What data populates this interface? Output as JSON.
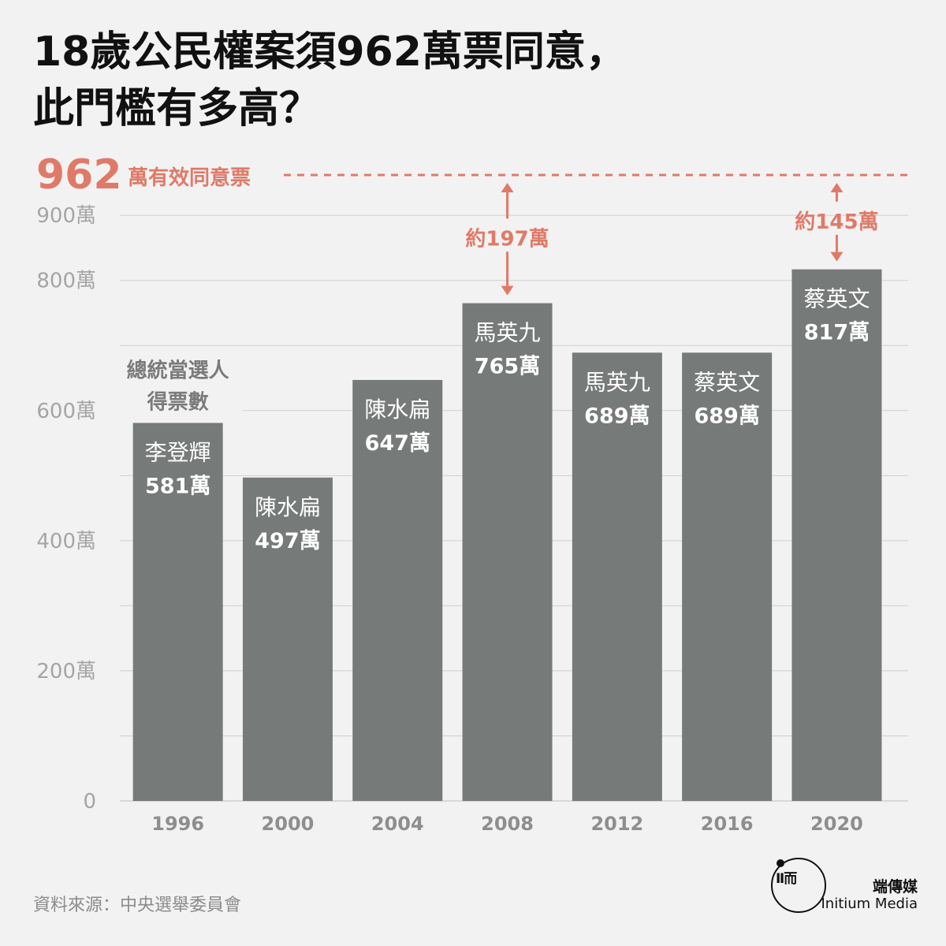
{
  "title": {
    "line1": "18歲公民權案須962萬票同意，",
    "line2": "此門檻有多高？"
  },
  "colors": {
    "bar": "#767a79",
    "accent": "#e07a68",
    "grid": "#cfcfcf",
    "axis_text": "#a5a5a5",
    "year_text": "#8e8e8e",
    "annotation_gray": "#7b7b7b"
  },
  "chart_data": {
    "type": "bar",
    "categories": [
      "1996",
      "2000",
      "2004",
      "2008",
      "2012",
      "2016",
      "2020"
    ],
    "values": [
      581,
      497,
      647,
      765,
      689,
      689,
      817
    ],
    "value_labels": [
      "581萬",
      "497萬",
      "647萬",
      "765萬",
      "689萬",
      "689萬",
      "817萬"
    ],
    "bar_names": [
      "李登輝",
      "陳水扁",
      "陳水扁",
      "馬英九",
      "馬英九",
      "蔡英文",
      "蔡英文"
    ],
    "ylim": [
      0,
      962
    ],
    "yticks": [
      0,
      200,
      400,
      600,
      800,
      900
    ],
    "ytick_labels": [
      "0",
      "200萬",
      "400萬",
      "600萬",
      "800萬",
      "900萬"
    ],
    "gridlines": [
      100,
      200,
      300,
      400,
      500,
      600,
      700,
      800,
      900
    ],
    "threshold": {
      "value": 962,
      "number_label": "962",
      "text_label": "萬有效同意票"
    },
    "gap_annotations": [
      {
        "category": "2008",
        "label": "約197萬"
      },
      {
        "category": "2020",
        "label": "約145萬"
      }
    ],
    "series_annotation": {
      "line1": "總統當選人",
      "line2": "得票數"
    }
  },
  "source": "資料來源：中央選舉委員會",
  "brand": {
    "logo_glyph": "Ⅱ而",
    "name_cn": "端傳媒",
    "name_en": "Initium Media"
  }
}
